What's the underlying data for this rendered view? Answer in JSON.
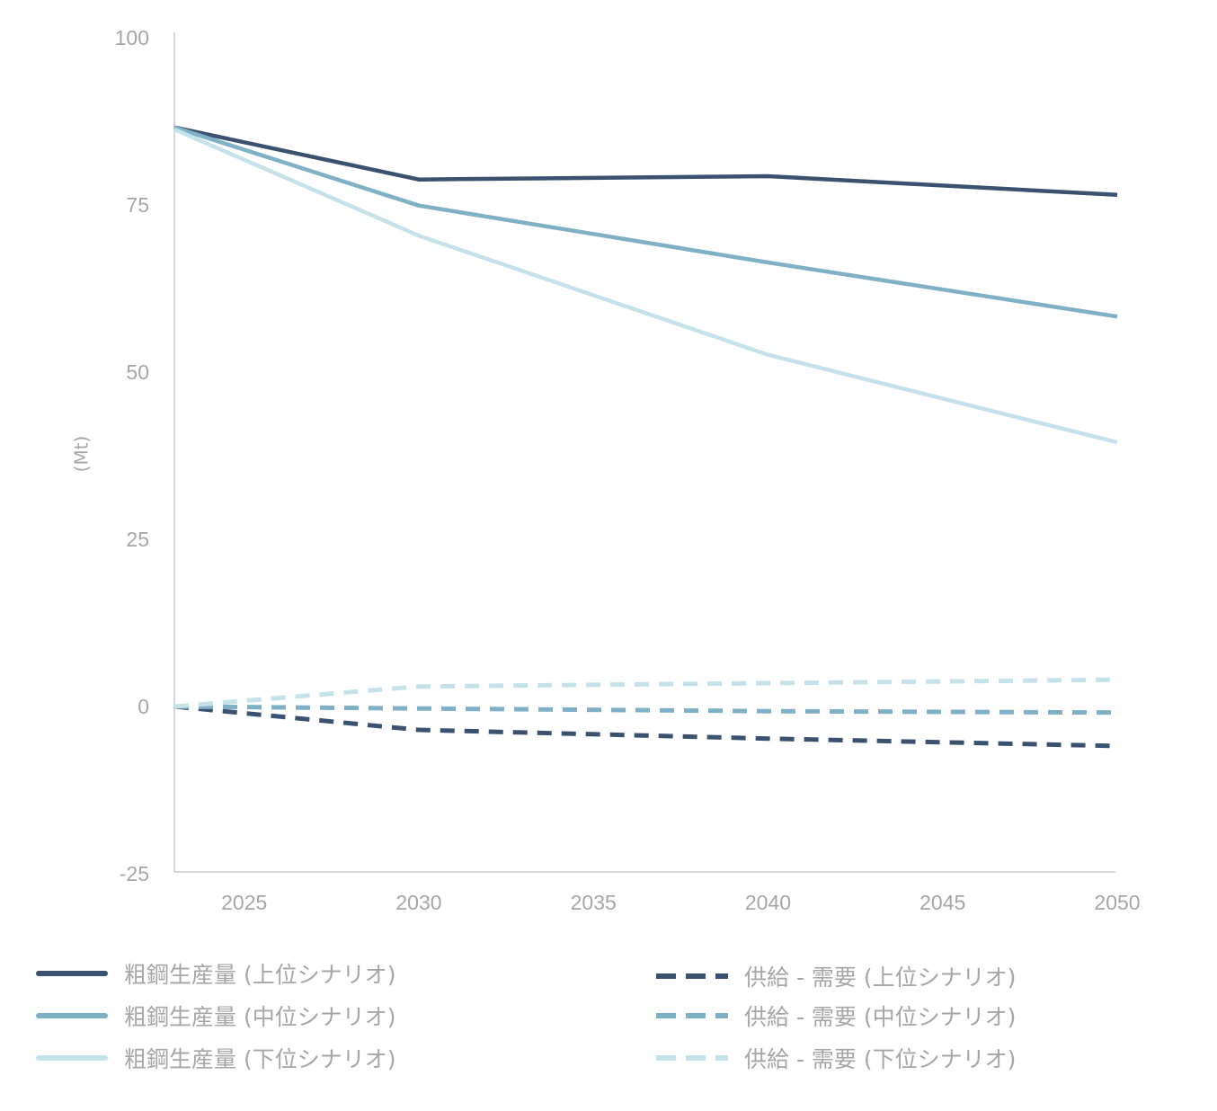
{
  "chart_data": {
    "type": "line",
    "title": "",
    "xlabel": "",
    "ylabel": "(Mt)",
    "xlim": [
      2023,
      2050
    ],
    "ylim": [
      -25,
      100
    ],
    "x_ticks": [
      2025,
      2030,
      2035,
      2040,
      2045,
      2050
    ],
    "y_ticks": [
      -25,
      0,
      25,
      50,
      75,
      100
    ],
    "x_tick_labels": [
      "2025",
      "2030",
      "2035",
      "2040",
      "2045",
      "2050"
    ],
    "y_tick_labels": [
      "-25",
      "0",
      "25",
      "50",
      "75",
      "100"
    ],
    "grid": false,
    "legend_position": "bottom",
    "series": [
      {
        "name": "粗鋼生産量 (上位シナリオ)",
        "style": "solid",
        "color": "#3a5270",
        "x": [
          2023,
          2030,
          2040,
          2050
        ],
        "values": [
          86.6,
          78.8,
          79.3,
          76.5
        ]
      },
      {
        "name": "粗鋼生産量 (中位シナリオ)",
        "style": "solid",
        "color": "#7fb0c5",
        "x": [
          2023,
          2030,
          2040,
          2050
        ],
        "values": [
          86.6,
          74.9,
          66.4,
          58.3
        ]
      },
      {
        "name": "粗鋼生産量 (下位シナリオ)",
        "style": "solid",
        "color": "#c5e2ea",
        "x": [
          2023,
          2030,
          2040,
          2050
        ],
        "values": [
          86.3,
          70.4,
          52.6,
          39.5
        ]
      },
      {
        "name": "供給 - 需要 (上位シナリオ)",
        "style": "dashed",
        "color": "#3a5270",
        "x": [
          2023,
          2030,
          2040,
          2050
        ],
        "values": [
          0,
          -3.5,
          -4.8,
          -5.9
        ]
      },
      {
        "name": "供給 - 需要 (中位シナリオ)",
        "style": "dashed",
        "color": "#7fb0c5",
        "x": [
          2023,
          2030,
          2040,
          2050
        ],
        "values": [
          0,
          -0.3,
          -0.7,
          -0.9
        ]
      },
      {
        "name": "供給 - 需要 (下位シナリオ)",
        "style": "dashed",
        "color": "#c5e2ea",
        "x": [
          2023,
          2030,
          2040,
          2050
        ],
        "values": [
          0,
          3.0,
          3.5,
          4.0
        ]
      }
    ]
  }
}
